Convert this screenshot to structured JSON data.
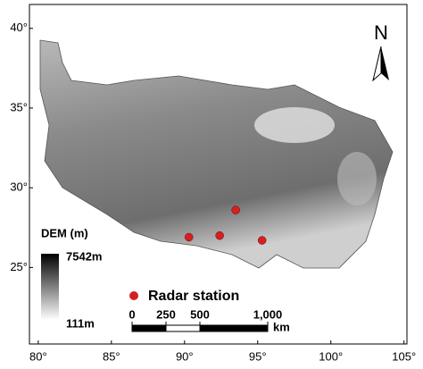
{
  "map": {
    "xlim": [
      79.4,
      105.2
    ],
    "ylim": [
      20.2,
      41.5
    ],
    "xticks": [
      {
        "value": 80,
        "label": "80°"
      },
      {
        "value": 85,
        "label": "85°"
      },
      {
        "value": 90,
        "label": "90°"
      },
      {
        "value": 95,
        "label": "95°"
      },
      {
        "value": 100,
        "label": "100°"
      },
      {
        "value": 105,
        "label": "105°"
      }
    ],
    "yticks": [
      {
        "value": 25,
        "label": "25°"
      },
      {
        "value": 30,
        "label": "30°"
      },
      {
        "value": 35,
        "label": "35°"
      },
      {
        "value": 40,
        "label": "40°"
      }
    ],
    "north": "N",
    "stations": {
      "name": "Radar station",
      "color": "#d42020",
      "lon": [
        90.3,
        92.4,
        93.5,
        95.3
      ],
      "lat": [
        26.9,
        27.0,
        28.6,
        26.7
      ]
    },
    "dem": {
      "title": "DEM (m)",
      "max": {
        "value": 7542,
        "label": "7542m"
      },
      "min": {
        "value": 111,
        "label": "111m"
      }
    },
    "scale": {
      "unit": "km",
      "ticks": [
        0,
        250,
        500,
        {
          "value": 1000,
          "label": "1,000"
        }
      ]
    }
  }
}
